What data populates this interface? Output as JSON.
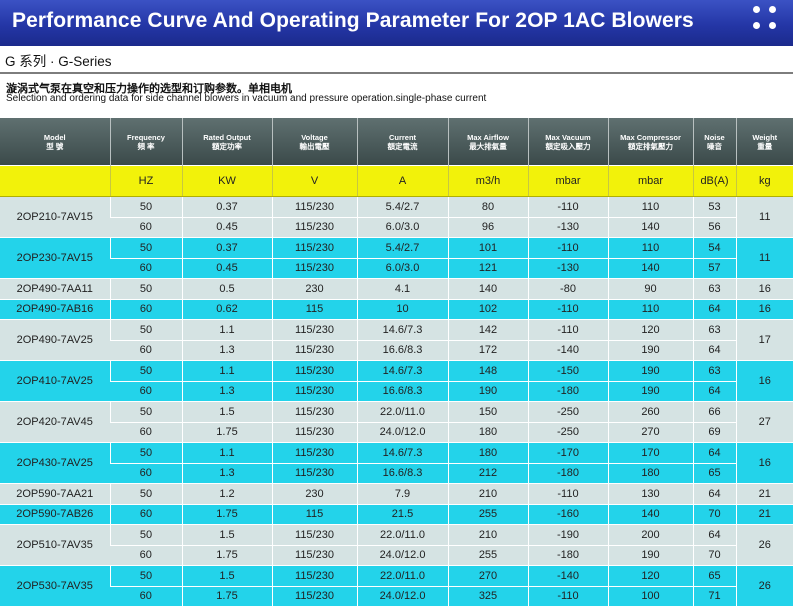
{
  "header": {
    "title": "Performance Curve And Operating Parameter For 2OP 1AC Blowers"
  },
  "series_title": "G 系列 · G-Series",
  "description_cn": "漩涡式气泵在真空和压力操作的选型和订购参数。单相电机",
  "description_en": "Selection and ordering data for side channel blowers in vacuum and pressure operation.single-phase current",
  "table": {
    "columns": [
      {
        "en": "Model",
        "cn": "型 號"
      },
      {
        "en": "Frequency",
        "cn": "頻 率"
      },
      {
        "en": "Rated Output",
        "cn": "額定功率"
      },
      {
        "en": "Voltage",
        "cn": "輸出電壓"
      },
      {
        "en": "Current",
        "cn": "額定電流"
      },
      {
        "en": "Max Airflow",
        "cn": "最大排氣量"
      },
      {
        "en": "Max Vacuum",
        "cn": "額定吸入壓力"
      },
      {
        "en": "Max Compressor",
        "cn": "額定排氣壓力"
      },
      {
        "en": "Noise",
        "cn": "噪音"
      },
      {
        "en": "Weight",
        "cn": "重量"
      }
    ],
    "units": [
      "HZ",
      "KW",
      "V",
      "A",
      "m3/h",
      "mbar",
      "mbar",
      "dB(A)",
      "kg"
    ],
    "models": [
      {
        "model": "2OP210-7AV15",
        "weight": "11",
        "rows": [
          {
            "freq": "50",
            "kw": "0.37",
            "v": "115/230",
            "a": "5.4/2.7",
            "flow": "80",
            "vac": "-110",
            "comp": "110",
            "db": "53"
          },
          {
            "freq": "60",
            "kw": "0.45",
            "v": "115/230",
            "a": "6.0/3.0",
            "flow": "96",
            "vac": "-130",
            "comp": "140",
            "db": "56"
          }
        ]
      },
      {
        "model": "2OP230-7AV15",
        "weight": "11",
        "rows": [
          {
            "freq": "50",
            "kw": "0.37",
            "v": "115/230",
            "a": "5.4/2.7",
            "flow": "101",
            "vac": "-110",
            "comp": "110",
            "db": "54"
          },
          {
            "freq": "60",
            "kw": "0.45",
            "v": "115/230",
            "a": "6.0/3.0",
            "flow": "121",
            "vac": "-130",
            "comp": "140",
            "db": "57"
          }
        ]
      },
      {
        "model": "2OP490-7AA11",
        "weight": "16",
        "rows": [
          {
            "freq": "50",
            "kw": "0.5",
            "v": "230",
            "a": "4.1",
            "flow": "140",
            "vac": "-80",
            "comp": "90",
            "db": "63"
          }
        ]
      },
      {
        "model": "2OP490-7AB16",
        "weight": "16",
        "rows": [
          {
            "freq": "60",
            "kw": "0.62",
            "v": "115",
            "a": "10",
            "flow": "102",
            "vac": "-110",
            "comp": "110",
            "db": "64"
          }
        ]
      },
      {
        "model": "2OP490-7AV25",
        "weight": "17",
        "rows": [
          {
            "freq": "50",
            "kw": "1.1",
            "v": "115/230",
            "a": "14.6/7.3",
            "flow": "142",
            "vac": "-110",
            "comp": "120",
            "db": "63"
          },
          {
            "freq": "60",
            "kw": "1.3",
            "v": "115/230",
            "a": "16.6/8.3",
            "flow": "172",
            "vac": "-140",
            "comp": "190",
            "db": "64"
          }
        ]
      },
      {
        "model": "2OP410-7AV25",
        "weight": "16",
        "rows": [
          {
            "freq": "50",
            "kw": "1.1",
            "v": "115/230",
            "a": "14.6/7.3",
            "flow": "148",
            "vac": "-150",
            "comp": "190",
            "db": "63"
          },
          {
            "freq": "60",
            "kw": "1.3",
            "v": "115/230",
            "a": "16.6/8.3",
            "flow": "190",
            "vac": "-180",
            "comp": "190",
            "db": "64"
          }
        ]
      },
      {
        "model": "2OP420-7AV45",
        "weight": "27",
        "rows": [
          {
            "freq": "50",
            "kw": "1.5",
            "v": "115/230",
            "a": "22.0/11.0",
            "flow": "150",
            "vac": "-250",
            "comp": "260",
            "db": "66"
          },
          {
            "freq": "60",
            "kw": "1.75",
            "v": "115/230",
            "a": "24.0/12.0",
            "flow": "180",
            "vac": "-250",
            "comp": "270",
            "db": "69"
          }
        ]
      },
      {
        "model": "2OP430-7AV25",
        "weight": "16",
        "rows": [
          {
            "freq": "50",
            "kw": "1.1",
            "v": "115/230",
            "a": "14.6/7.3",
            "flow": "180",
            "vac": "-170",
            "comp": "170",
            "db": "64"
          },
          {
            "freq": "60",
            "kw": "1.3",
            "v": "115/230",
            "a": "16.6/8.3",
            "flow": "212",
            "vac": "-180",
            "comp": "180",
            "db": "65"
          }
        ]
      },
      {
        "model": "2OP590-7AA21",
        "weight": "21",
        "rows": [
          {
            "freq": "50",
            "kw": "1.2",
            "v": "230",
            "a": "7.9",
            "flow": "210",
            "vac": "-110",
            "comp": "130",
            "db": "64"
          }
        ]
      },
      {
        "model": "2OP590-7AB26",
        "weight": "21",
        "rows": [
          {
            "freq": "60",
            "kw": "1.75",
            "v": "115",
            "a": "21.5",
            "flow": "255",
            "vac": "-160",
            "comp": "140",
            "db": "70"
          }
        ]
      },
      {
        "model": "2OP510-7AV35",
        "weight": "26",
        "rows": [
          {
            "freq": "50",
            "kw": "1.5",
            "v": "115/230",
            "a": "22.0/11.0",
            "flow": "210",
            "vac": "-190",
            "comp": "200",
            "db": "64"
          },
          {
            "freq": "60",
            "kw": "1.75",
            "v": "115/230",
            "a": "24.0/12.0",
            "flow": "255",
            "vac": "-180",
            "comp": "190",
            "db": "70"
          }
        ]
      },
      {
        "model": "2OP530-7AV35",
        "weight": "26",
        "rows": [
          {
            "freq": "50",
            "kw": "1.5",
            "v": "115/230",
            "a": "22.0/11.0",
            "flow": "270",
            "vac": "-140",
            "comp": "120",
            "db": "65"
          },
          {
            "freq": "60",
            "kw": "1.75",
            "v": "115/230",
            "a": "24.0/12.0",
            "flow": "325",
            "vac": "-110",
            "comp": "100",
            "db": "71"
          }
        ]
      }
    ]
  },
  "colors": {
    "banner": "#2436a6",
    "units_row": "#f2f20a",
    "row_gray": "#d5e3e3",
    "row_cyan": "#23d3ea",
    "header_row": "#4a5a5a"
  }
}
